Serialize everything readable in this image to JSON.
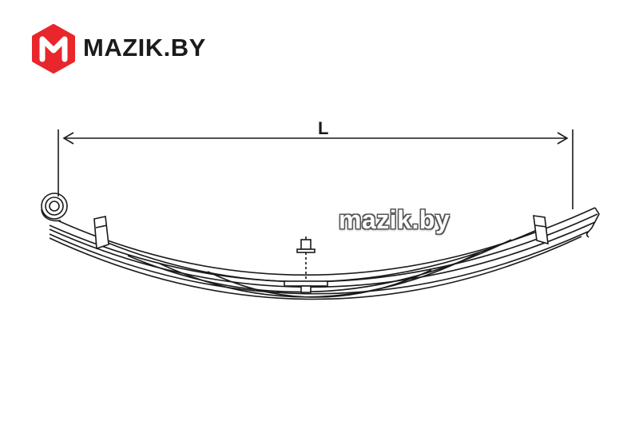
{
  "logo": {
    "text": "MAZIK.BY",
    "mark": "M",
    "brand_color": "#e8262b"
  },
  "dimension": {
    "label": "L"
  },
  "watermark": {
    "text": "mazik.by"
  },
  "colors": {
    "line": "#1a1a1a"
  }
}
